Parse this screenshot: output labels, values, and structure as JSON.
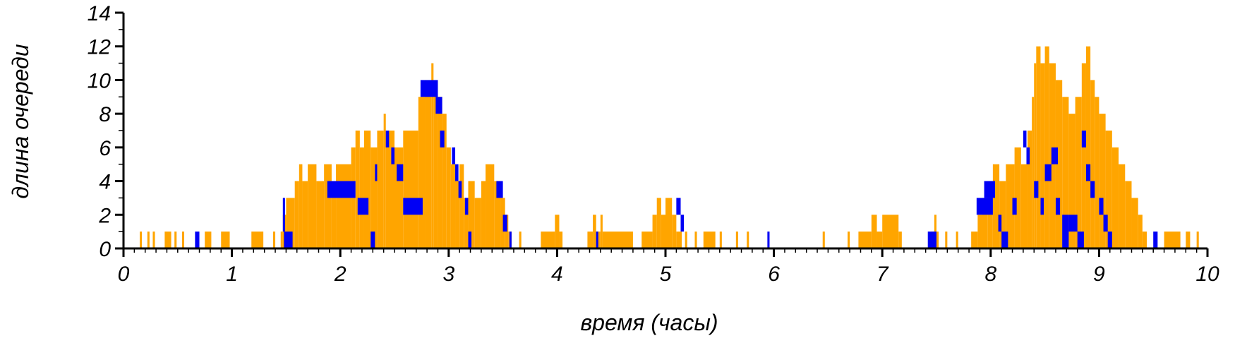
{
  "chart_data": {
    "type": "area",
    "xlabel": "время (часы)",
    "ylabel": "длина очереди",
    "xlim": [
      0,
      10
    ],
    "ylim": [
      0,
      14
    ],
    "x_ticks": [
      "0",
      "1",
      "2",
      "3",
      "4",
      "5",
      "6",
      "7",
      "8",
      "9",
      "10"
    ],
    "y_ticks": [
      "0",
      "2",
      "4",
      "6",
      "8",
      "10",
      "12",
      "14"
    ],
    "grid": false,
    "colors": {
      "queue": "#FFA500",
      "service": "#0000F5",
      "axis": "#000000"
    },
    "series": [
      {
        "name": "",
        "color": "#FFA500",
        "points": [
          [
            0.0,
            0
          ],
          [
            0.15,
            1
          ],
          [
            0.17,
            0
          ],
          [
            0.22,
            1
          ],
          [
            0.24,
            0
          ],
          [
            0.27,
            1
          ],
          [
            0.29,
            0
          ],
          [
            0.38,
            1
          ],
          [
            0.44,
            0
          ],
          [
            0.47,
            1
          ],
          [
            0.49,
            0
          ],
          [
            0.54,
            1
          ],
          [
            0.56,
            0
          ],
          [
            0.75,
            1
          ],
          [
            0.81,
            0
          ],
          [
            0.9,
            1
          ],
          [
            0.98,
            0
          ],
          [
            1.18,
            1
          ],
          [
            1.29,
            0
          ],
          [
            1.38,
            1
          ],
          [
            1.4,
            0
          ],
          [
            1.45,
            1
          ],
          [
            1.47,
            2
          ],
          [
            1.5,
            3
          ],
          [
            1.58,
            4
          ],
          [
            1.62,
            5
          ],
          [
            1.65,
            4
          ],
          [
            1.7,
            5
          ],
          [
            1.78,
            4
          ],
          [
            1.85,
            5
          ],
          [
            1.92,
            4
          ],
          [
            1.96,
            5
          ],
          [
            2.1,
            6
          ],
          [
            2.14,
            7
          ],
          [
            2.18,
            6
          ],
          [
            2.22,
            7
          ],
          [
            2.28,
            6
          ],
          [
            2.34,
            7
          ],
          [
            2.4,
            8
          ],
          [
            2.42,
            7
          ],
          [
            2.5,
            6
          ],
          [
            2.58,
            7
          ],
          [
            2.72,
            9
          ],
          [
            2.78,
            10
          ],
          [
            2.84,
            11
          ],
          [
            2.86,
            10
          ],
          [
            2.9,
            9
          ],
          [
            2.94,
            8
          ],
          [
            2.98,
            6
          ],
          [
            3.02,
            5
          ],
          [
            3.06,
            4
          ],
          [
            3.1,
            5
          ],
          [
            3.14,
            3
          ],
          [
            3.18,
            4
          ],
          [
            3.24,
            3
          ],
          [
            3.3,
            4
          ],
          [
            3.34,
            5
          ],
          [
            3.42,
            4
          ],
          [
            3.48,
            3
          ],
          [
            3.52,
            2
          ],
          [
            3.55,
            1
          ],
          [
            3.58,
            0
          ],
          [
            3.65,
            1
          ],
          [
            3.67,
            0
          ],
          [
            3.85,
            1
          ],
          [
            3.98,
            2
          ],
          [
            4.02,
            1
          ],
          [
            4.05,
            0
          ],
          [
            4.28,
            1
          ],
          [
            4.33,
            2
          ],
          [
            4.36,
            1
          ],
          [
            4.4,
            2
          ],
          [
            4.42,
            1
          ],
          [
            4.7,
            0
          ],
          [
            4.78,
            1
          ],
          [
            4.88,
            2
          ],
          [
            4.92,
            3
          ],
          [
            4.96,
            2
          ],
          [
            5.0,
            3
          ],
          [
            5.06,
            2
          ],
          [
            5.1,
            1
          ],
          [
            5.15,
            0
          ],
          [
            5.18,
            1
          ],
          [
            5.2,
            0
          ],
          [
            5.27,
            1
          ],
          [
            5.29,
            0
          ],
          [
            5.35,
            1
          ],
          [
            5.46,
            0
          ],
          [
            5.5,
            1
          ],
          [
            5.52,
            0
          ],
          [
            5.65,
            1
          ],
          [
            5.67,
            0
          ],
          [
            5.75,
            1
          ],
          [
            5.77,
            0
          ],
          [
            6.45,
            1
          ],
          [
            6.47,
            0
          ],
          [
            6.68,
            1
          ],
          [
            6.7,
            0
          ],
          [
            6.78,
            1
          ],
          [
            6.9,
            2
          ],
          [
            6.95,
            1
          ],
          [
            7.0,
            2
          ],
          [
            7.15,
            1
          ],
          [
            7.18,
            0
          ],
          [
            7.45,
            1
          ],
          [
            7.48,
            2
          ],
          [
            7.5,
            1
          ],
          [
            7.52,
            0
          ],
          [
            7.58,
            1
          ],
          [
            7.6,
            0
          ],
          [
            7.68,
            1
          ],
          [
            7.7,
            0
          ],
          [
            7.82,
            1
          ],
          [
            7.88,
            2
          ],
          [
            7.92,
            3
          ],
          [
            7.97,
            4
          ],
          [
            8.02,
            5
          ],
          [
            8.08,
            4
          ],
          [
            8.14,
            5
          ],
          [
            8.22,
            6
          ],
          [
            8.28,
            5
          ],
          [
            8.34,
            7
          ],
          [
            8.38,
            9
          ],
          [
            8.4,
            11
          ],
          [
            8.42,
            12
          ],
          [
            8.46,
            11
          ],
          [
            8.5,
            12
          ],
          [
            8.54,
            11
          ],
          [
            8.6,
            10
          ],
          [
            8.66,
            9
          ],
          [
            8.72,
            8
          ],
          [
            8.78,
            9
          ],
          [
            8.84,
            11
          ],
          [
            8.88,
            12
          ],
          [
            8.92,
            10
          ],
          [
            8.96,
            9
          ],
          [
            9.0,
            8
          ],
          [
            9.06,
            7
          ],
          [
            9.12,
            6
          ],
          [
            9.18,
            5
          ],
          [
            9.24,
            4
          ],
          [
            9.3,
            3
          ],
          [
            9.36,
            2
          ],
          [
            9.4,
            1
          ],
          [
            9.44,
            0
          ],
          [
            9.6,
            1
          ],
          [
            9.75,
            0
          ],
          [
            9.8,
            1
          ],
          [
            9.84,
            0
          ],
          [
            9.9,
            1
          ],
          [
            9.92,
            0
          ],
          [
            10.0,
            0
          ]
        ]
      },
      {
        "name": "",
        "color": "#0000F5",
        "segments": [
          [
            0.66,
            0.7,
            0,
            1
          ],
          [
            1.48,
            1.56,
            0,
            1
          ],
          [
            1.47,
            1.49,
            1,
            3
          ],
          [
            1.88,
            2.14,
            3,
            4
          ],
          [
            2.16,
            2.26,
            2,
            3
          ],
          [
            2.28,
            2.32,
            0,
            1
          ],
          [
            2.32,
            2.34,
            4,
            5
          ],
          [
            2.42,
            2.45,
            6,
            7
          ],
          [
            2.47,
            2.5,
            5,
            6
          ],
          [
            2.52,
            2.58,
            4,
            5
          ],
          [
            2.58,
            2.76,
            2,
            3
          ],
          [
            2.74,
            2.9,
            9,
            10
          ],
          [
            2.88,
            2.94,
            8,
            9
          ],
          [
            2.92,
            2.96,
            6,
            7
          ],
          [
            3.03,
            3.06,
            5,
            6
          ],
          [
            3.06,
            3.09,
            4,
            5
          ],
          [
            3.09,
            3.12,
            3,
            4
          ],
          [
            3.15,
            3.18,
            2,
            3
          ],
          [
            3.18,
            3.21,
            0,
            1
          ],
          [
            3.44,
            3.5,
            3,
            4
          ],
          [
            3.5,
            3.54,
            1,
            2
          ],
          [
            3.56,
            3.58,
            0,
            1
          ],
          [
            4.36,
            4.38,
            0,
            1
          ],
          [
            5.1,
            5.14,
            2,
            3
          ],
          [
            5.14,
            5.17,
            1,
            2
          ],
          [
            5.94,
            5.96,
            0,
            1
          ],
          [
            7.42,
            7.5,
            0,
            1
          ],
          [
            7.87,
            8.02,
            2,
            3
          ],
          [
            7.94,
            8.04,
            3,
            4
          ],
          [
            8.07,
            8.1,
            1,
            2
          ],
          [
            8.1,
            8.16,
            0,
            1
          ],
          [
            8.2,
            8.24,
            2,
            3
          ],
          [
            8.3,
            8.33,
            6,
            7
          ],
          [
            8.33,
            8.36,
            5,
            6
          ],
          [
            8.4,
            8.44,
            3,
            4
          ],
          [
            8.46,
            8.49,
            2,
            3
          ],
          [
            8.5,
            8.56,
            4,
            5
          ],
          [
            8.56,
            8.62,
            5,
            6
          ],
          [
            8.6,
            8.64,
            2,
            3
          ],
          [
            8.66,
            8.72,
            0,
            2
          ],
          [
            8.72,
            8.8,
            1,
            2
          ],
          [
            8.8,
            8.86,
            0,
            1
          ],
          [
            8.84,
            8.88,
            6,
            7
          ],
          [
            8.88,
            8.92,
            4,
            5
          ],
          [
            8.92,
            8.96,
            3,
            4
          ],
          [
            9.0,
            9.04,
            2,
            3
          ],
          [
            9.04,
            9.08,
            1,
            2
          ],
          [
            9.08,
            9.12,
            0,
            1
          ],
          [
            9.5,
            9.54,
            0,
            1
          ]
        ]
      }
    ]
  }
}
